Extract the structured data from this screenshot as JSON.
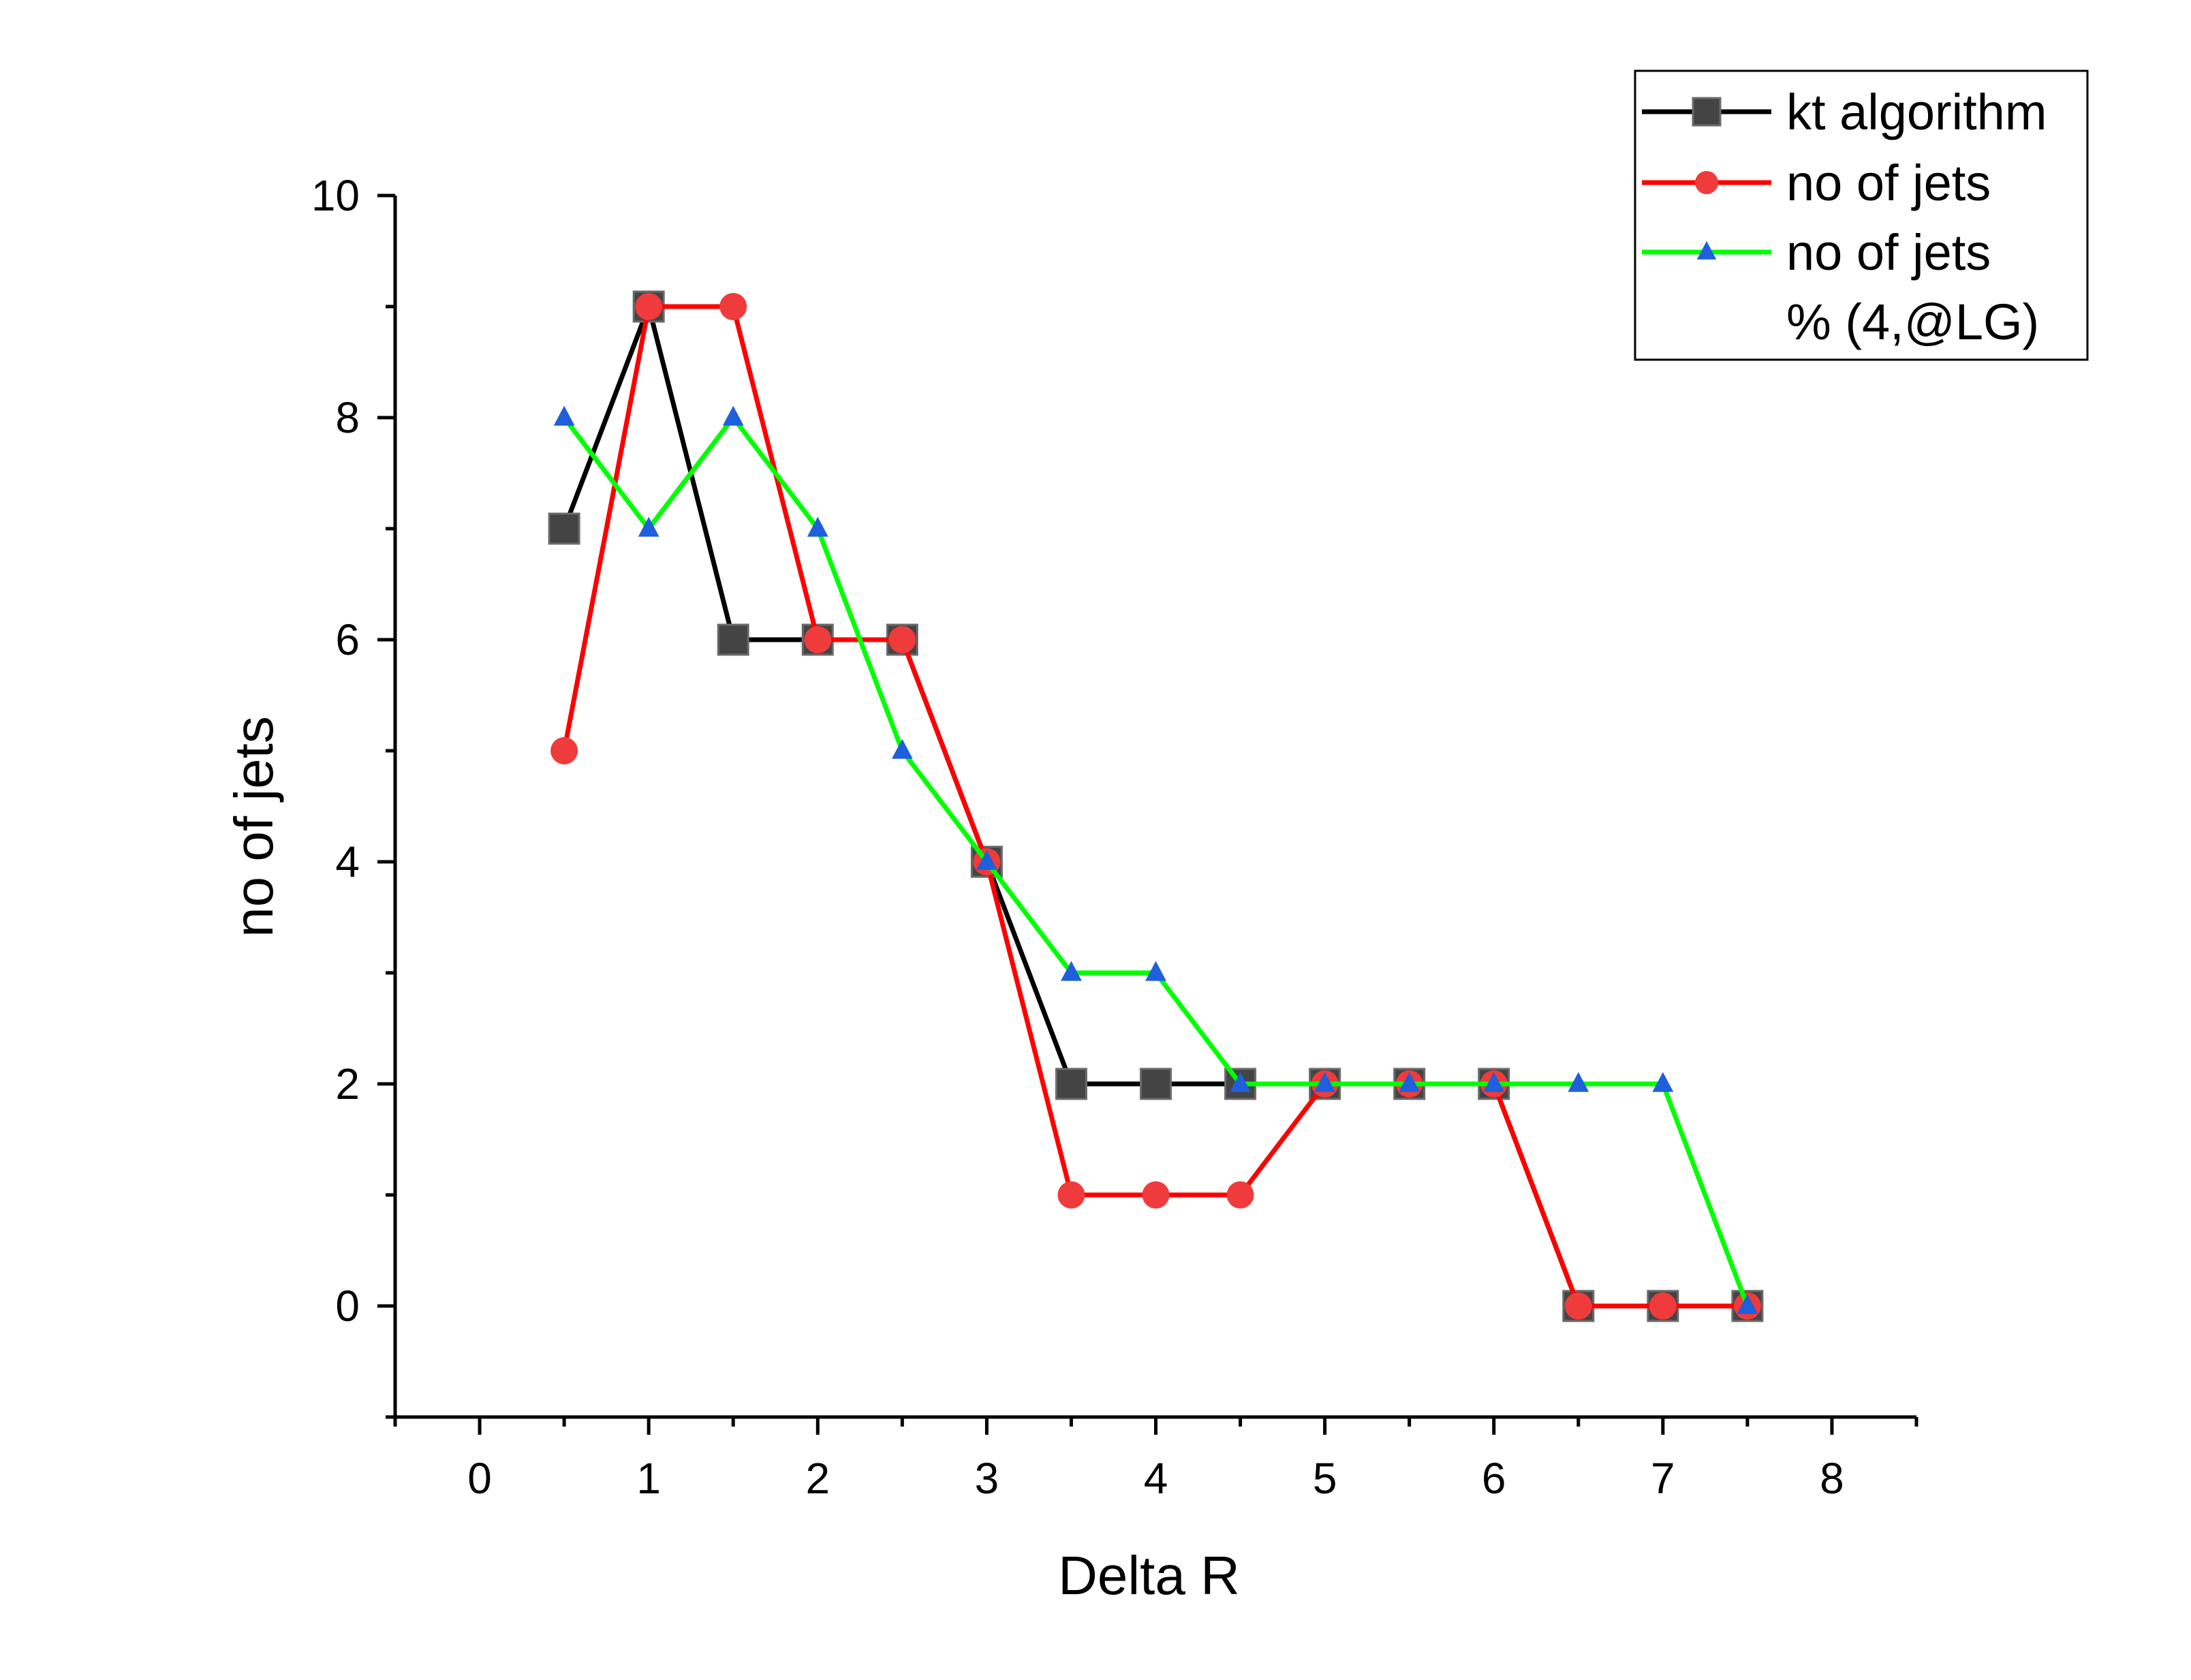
{
  "chart_data": {
    "type": "line",
    "xlabel": "Delta R",
    "ylabel": "no of jets",
    "xlim": [
      -0.5,
      8.5
    ],
    "ylim": [
      -1,
      10
    ],
    "xticks": [
      0,
      1,
      2,
      3,
      4,
      5,
      6,
      7,
      8
    ],
    "xtick_labels": [
      "0",
      "1",
      "2",
      "3",
      "4",
      "5",
      "6",
      "7",
      "8"
    ],
    "yticks": [
      0,
      2,
      4,
      6,
      8,
      10
    ],
    "ytick_labels": [
      "0",
      "2",
      "4",
      "6",
      "8",
      "10"
    ],
    "legend_position": "top-right",
    "series": [
      {
        "name": "kt algorithm",
        "line_color": "#000000",
        "marker_color": "#444444",
        "marker": "square",
        "x": [
          0.5,
          1,
          1.5,
          2,
          2.5,
          3,
          3.5,
          4,
          4.5,
          5,
          5.5,
          6,
          6.5,
          7,
          7.5
        ],
        "y": [
          7,
          9,
          6,
          6,
          6,
          4,
          2,
          2,
          2,
          2,
          2,
          2,
          0,
          0,
          0
        ]
      },
      {
        "name": "no of jets",
        "line_color": "#ff0000",
        "marker_color": "#ef3b3b",
        "marker": "circle",
        "x": [
          0.5,
          1,
          1.5,
          2,
          2.5,
          3,
          3.5,
          4,
          4.5,
          5,
          5.5,
          6,
          6.5,
          7,
          7.5
        ],
        "y": [
          5,
          9,
          9,
          6,
          6,
          4,
          1,
          1,
          1,
          2,
          2,
          2,
          0,
          0,
          0
        ]
      },
      {
        "name": "no of jets",
        "name_line2": "% (4,@LG)",
        "line_color": "#00ff00",
        "marker_color": "#1f5fdc",
        "marker": "triangle",
        "x": [
          0.5,
          1,
          1.5,
          2,
          2.5,
          3,
          3.5,
          4,
          4.5,
          5,
          5.5,
          6,
          6.5,
          7,
          7.5
        ],
        "y": [
          8,
          7,
          8,
          7,
          5,
          4,
          3,
          3,
          2,
          2,
          2,
          2,
          2,
          2,
          0
        ]
      }
    ]
  }
}
